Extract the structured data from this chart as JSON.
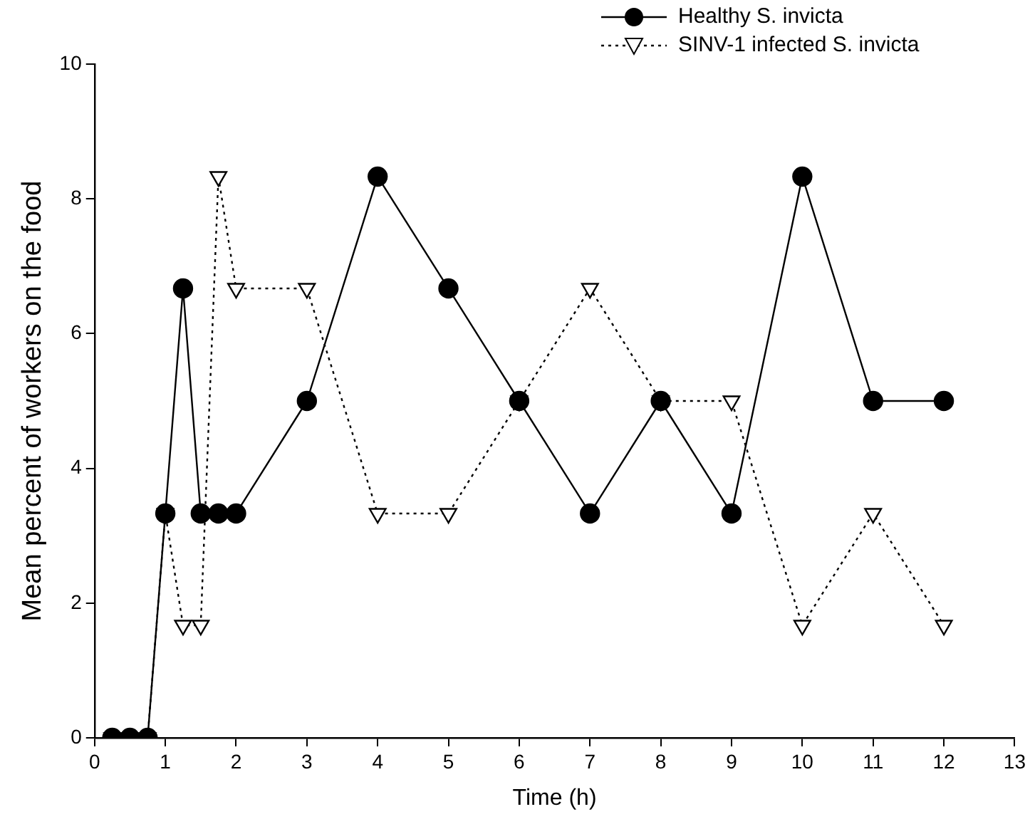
{
  "chart_data": {
    "type": "line",
    "xlabel": "Time (h)",
    "ylabel": "Mean percent of workers on the food",
    "xlim": [
      0,
      13
    ],
    "xticks": [
      0,
      1,
      2,
      3,
      4,
      5,
      6,
      7,
      8,
      9,
      10,
      11,
      12,
      13
    ],
    "ylim": [
      0,
      10
    ],
    "yticks": [
      0,
      2,
      4,
      6,
      8,
      10
    ],
    "grid": false,
    "legend": "top right",
    "x": [
      0.25,
      0.5,
      0.75,
      1,
      1.25,
      1.5,
      1.75,
      2,
      3,
      4,
      5,
      6,
      7,
      8,
      9,
      10,
      11,
      12
    ],
    "series": [
      {
        "name": "Healthy S. invicta",
        "color": "#000000",
        "marker": "circle",
        "line_style": "solid",
        "values": [
          0,
          0,
          0,
          3.33,
          6.67,
          3.33,
          3.33,
          3.33,
          5,
          8.33,
          6.67,
          5,
          3.33,
          5,
          3.33,
          8.33,
          5,
          5
        ]
      },
      {
        "name": "SINV-1 infected S. invicta",
        "color": "#000000",
        "marker": "triangle",
        "line_style": "dotted",
        "values": [
          0,
          0,
          0,
          3.33,
          1.67,
          1.67,
          8.33,
          6.67,
          6.67,
          3.33,
          3.33,
          5,
          6.67,
          5,
          5,
          1.67,
          3.33,
          1.67
        ]
      }
    ]
  }
}
